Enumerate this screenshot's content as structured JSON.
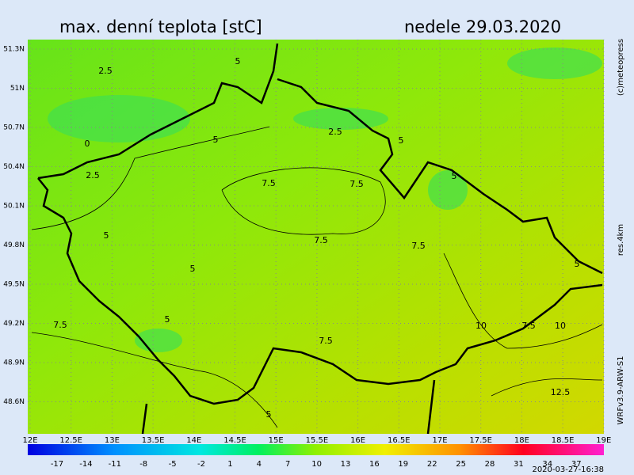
{
  "header": {
    "title": "max. denní teplota [stC]",
    "date": "nedele 29.03.2020"
  },
  "side_labels": {
    "copyright": "(c)meteopress",
    "resolution": "res.4km",
    "model": "WRFv3.9-ARW-S1"
  },
  "lat_labels": [
    "51.3N",
    "51N",
    "50.7N",
    "50.4N",
    "50.1N",
    "49.8N",
    "49.5N",
    "49.2N",
    "48.9N",
    "48.6N"
  ],
  "lon_labels": [
    "12E",
    "12.5E",
    "13E",
    "13.5E",
    "14E",
    "14.5E",
    "15E",
    "15.5E",
    "16E",
    "16.5E",
    "17E",
    "17.5E",
    "18E",
    "18.5E",
    "19E"
  ],
  "colorbar_labels": [
    -17,
    -14,
    -11,
    -8,
    -5,
    -2,
    1,
    4,
    7,
    10,
    13,
    16,
    19,
    22,
    25,
    28,
    31,
    34,
    37
  ],
  "contour_labels": [
    2.5,
    5,
    0,
    2.5,
    5,
    2.5,
    5,
    5,
    7.5,
    7.5,
    5,
    7.5,
    7.5,
    5,
    5,
    7.5,
    5,
    7.5,
    10,
    7.5,
    10,
    12.5,
    5
  ],
  "timestamp": "2020-03-27-16:38"
}
